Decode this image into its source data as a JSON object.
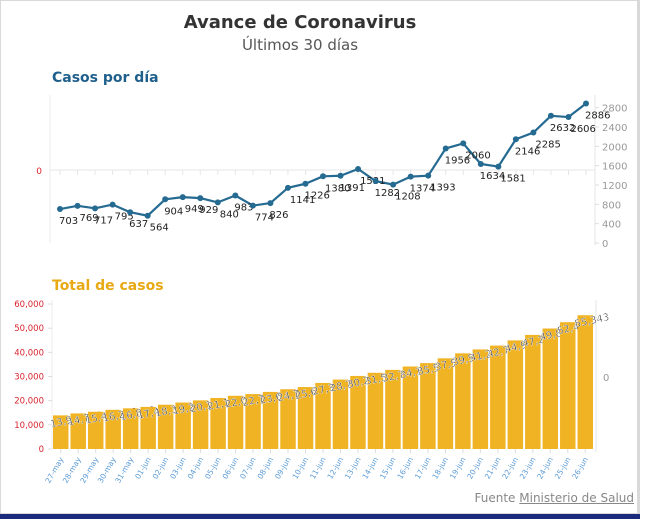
{
  "header": {
    "title": "Avance de Coronavirus",
    "subtitle": "Últimos 30 días"
  },
  "footer": {
    "source_prefix": "Fuente",
    "source_link": "Ministerio de Salud"
  },
  "colors": {
    "line": "#256a91",
    "bar": "#f0b323",
    "title_line": "#1f5f8b",
    "title_bar": "#e8a913",
    "left_axis": "#d9232d",
    "date_label": "#5b9bd5"
  },
  "chart_data": [
    {
      "type": "line",
      "title": "Casos por día",
      "categories": [
        "27-may",
        "28-may",
        "29-may",
        "30-may",
        "31-may",
        "01-jun",
        "02-jun",
        "03-jun",
        "04-jun",
        "05-jun",
        "06-jun",
        "07-jun",
        "08-jun",
        "09-jun",
        "10-jun",
        "11-jun",
        "12-jun",
        "13-jun",
        "14-jun",
        "15-jun",
        "16-jun",
        "17-jun",
        "18-jun",
        "19-jun",
        "20-jun",
        "21-jun",
        "22-jun",
        "23-jun",
        "24-jun",
        "25-jun",
        "26-jun"
      ],
      "values": [
        703,
        769,
        717,
        795,
        637,
        564,
        904,
        949,
        929,
        840,
        983,
        774,
        826,
        1141,
        1226,
        1380,
        1391,
        1531,
        1282,
        1208,
        1374,
        1393,
        1956,
        2060,
        1634,
        1581,
        2146,
        2285,
        2632,
        2606,
        2886
      ],
      "right_axis": {
        "ticks": [
          0,
          400,
          800,
          1200,
          1600,
          2000,
          2400,
          2800
        ],
        "range": [
          0,
          3000
        ]
      },
      "left_axis": {
        "ticks": [
          0
        ]
      },
      "grid": false
    },
    {
      "type": "bar",
      "title": "Total de casos",
      "categories": [
        "27-may",
        "28-may",
        "29-may",
        "30-may",
        "31-may",
        "01-jun",
        "02-jun",
        "03-jun",
        "04-jun",
        "05-jun",
        "06-jun",
        "07-jun",
        "08-jun",
        "09-jun",
        "10-jun",
        "11-jun",
        "12-jun",
        "13-jun",
        "14-jun",
        "15-jun",
        "16-jun",
        "17-jun",
        "18-jun",
        "19-jun",
        "20-jun",
        "21-jun",
        "22-jun",
        "23-jun",
        "24-jun",
        "25-jun",
        "26-jun"
      ],
      "values": [
        13914,
        14715,
        15416,
        16216,
        16817,
        17418,
        18319,
        19220,
        20121,
        21122,
        22022,
        22723,
        23624,
        24725,
        25627,
        27338,
        28730,
        30231,
        31532,
        32733,
        34135,
        35532,
        37510,
        39570,
        41204,
        42785,
        44931,
        47216,
        49851,
        52457,
        55343
      ],
      "labels": [
        "13,914",
        "14,715",
        "15,416",
        "16,216",
        "16,817",
        "17,418",
        "18,319",
        "19,220",
        "20,121",
        "21,122",
        "22,022",
        "22,723",
        "23,624",
        "24,725",
        "25,627",
        "27,338",
        "28,730",
        "30,231",
        "31,532",
        "32,733",
        "34,135",
        "35,532",
        "37,510",
        "39,570",
        "41,204",
        "42,785",
        "44,931",
        "47,216",
        "49,851",
        "52,457",
        "55,343"
      ],
      "left_axis": {
        "ticks": [
          "0",
          "10,000",
          "20,000",
          "30,000",
          "40,000",
          "50,000",
          "60,000"
        ],
        "range": [
          0,
          60000
        ]
      },
      "right_axis": {
        "ticks": [
          0
        ]
      },
      "grid": false
    }
  ]
}
